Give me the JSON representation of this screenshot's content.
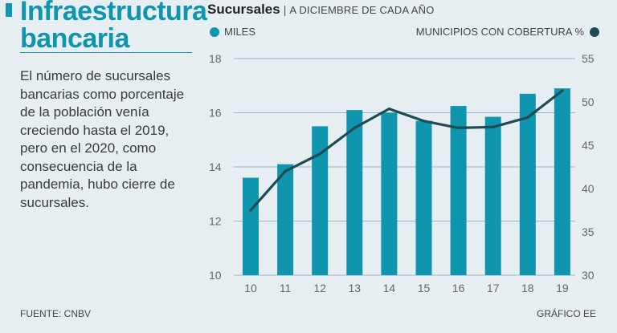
{
  "headline": [
    "Infraestructura",
    "bancaria"
  ],
  "description": "El número de sucursales bancarias como porcentaje de la población venía creciendo hasta el 2019, pero en el 2020, como consecuencia de la pandemia, hubo cierre de sucursales.",
  "source": "FUENTE: CNBV",
  "credit": "GRÁFICO EE",
  "chart_title": "Sucursales",
  "chart_subtitle": "A DICIEMBRE DE CADA AÑO",
  "legend": {
    "bars": "MILES",
    "line": "MUNICIPIOS CON COBERTURA %"
  },
  "colors": {
    "bar": "#0f95ad",
    "line": "#1f4b54",
    "grid": "#7aa3b5"
  },
  "chart_data": {
    "type": "bar",
    "title": "Sucursales",
    "subtitle": "A DICIEMBRE DE CADA AÑO",
    "categories": [
      "10",
      "11",
      "12",
      "13",
      "14",
      "15",
      "16",
      "17",
      "18",
      "19"
    ],
    "series": [
      {
        "name": "MILES",
        "type": "bar",
        "axis": "left",
        "values": [
          13.6,
          14.1,
          15.5,
          16.1,
          16.0,
          15.7,
          16.25,
          15.85,
          16.7,
          16.9
        ]
      },
      {
        "name": "MUNICIPIOS CON COBERTURA %",
        "type": "line",
        "axis": "right",
        "values": [
          37.5,
          42.0,
          44.0,
          47.0,
          49.2,
          47.8,
          47.0,
          47.1,
          48.2,
          51.3
        ]
      }
    ],
    "ylim_left": [
      10,
      18
    ],
    "yticks_left": [
      "10",
      "12",
      "14",
      "16",
      "18"
    ],
    "ylim_right": [
      30,
      55
    ],
    "yticks_right": [
      "30",
      "35",
      "40",
      "45",
      "50",
      "55"
    ],
    "grid": true,
    "legend": "top"
  }
}
